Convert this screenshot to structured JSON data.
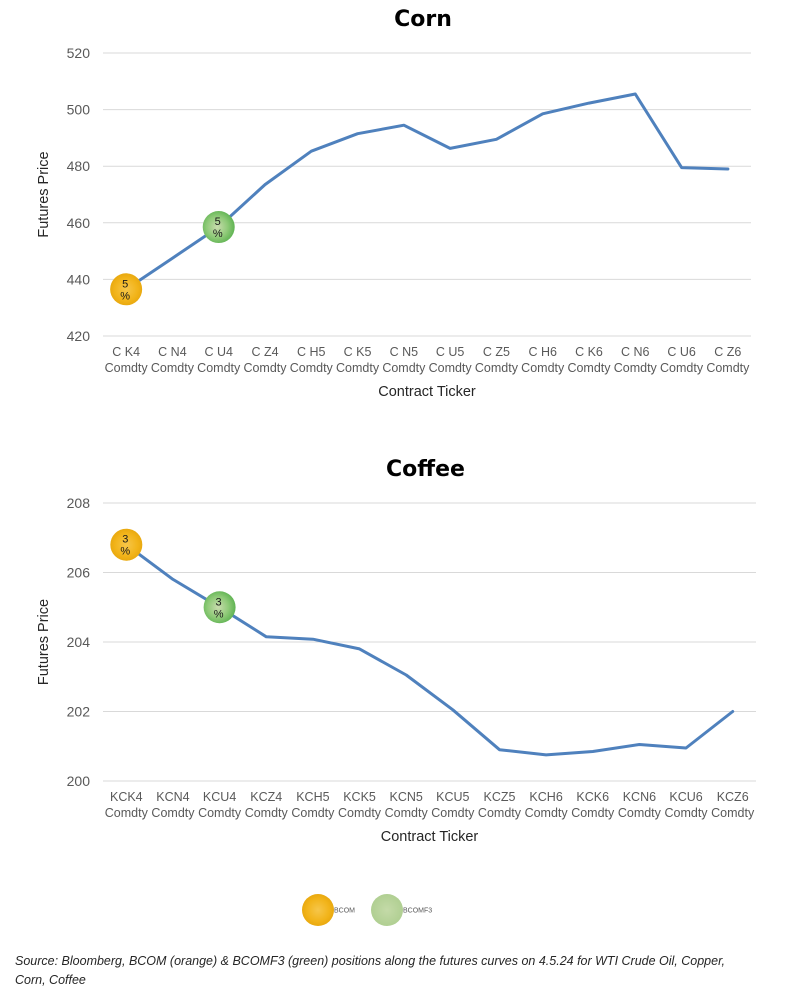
{
  "chart_data": [
    {
      "type": "line",
      "title": "Corn",
      "xlabel": "Contract Ticker",
      "ylabel": "Futures Price",
      "ylim": [
        420,
        520
      ],
      "yticks": [
        420,
        440,
        460,
        480,
        500,
        520
      ],
      "grid": true,
      "categories": [
        [
          "C K4",
          "Comdty"
        ],
        [
          "C N4",
          "Comdty"
        ],
        [
          "C U4",
          "Comdty"
        ],
        [
          "C Z4",
          "Comdty"
        ],
        [
          "C H5",
          "Comdty"
        ],
        [
          "C K5",
          "Comdty"
        ],
        [
          "C N5",
          "Comdty"
        ],
        [
          "C U5",
          "Comdty"
        ],
        [
          "C Z5",
          "Comdty"
        ],
        [
          "C H6",
          "Comdty"
        ],
        [
          "C K6",
          "Comdty"
        ],
        [
          "C N6",
          "Comdty"
        ],
        [
          "C U6",
          "Comdty"
        ],
        [
          "C Z6",
          "Comdty"
        ]
      ],
      "series": [
        {
          "values": [
            436.5,
            447.5,
            458.5,
            473.5,
            485.3,
            491.5,
            494.5,
            486.3,
            489.5,
            498.5,
            502.3,
            505.5,
            479.5,
            479.0
          ],
          "color": "#4f81bd"
        }
      ],
      "markers": [
        {
          "index": 0,
          "value": 436.5,
          "label": [
            "5",
            "%"
          ],
          "color": "#f4b400",
          "legend": "BCOM"
        },
        {
          "index": 2,
          "value": 458.5,
          "label": [
            "5",
            "%"
          ],
          "color": "#7fbf6a",
          "legend": "BCOMF3"
        }
      ]
    },
    {
      "type": "line",
      "title": "Coffee",
      "xlabel": "Contract Ticker",
      "ylabel": "Futures Price",
      "ylim": [
        200,
        208
      ],
      "yticks": [
        200,
        202,
        204,
        206,
        208
      ],
      "grid": true,
      "categories": [
        [
          "KCK4",
          "Comdty"
        ],
        [
          "KCN4",
          "Comdty"
        ],
        [
          "KCU4",
          "Comdty"
        ],
        [
          "KCZ4",
          "Comdty"
        ],
        [
          "KCH5",
          "Comdty"
        ],
        [
          "KCK5",
          "Comdty"
        ],
        [
          "KCN5",
          "Comdty"
        ],
        [
          "KCU5",
          "Comdty"
        ],
        [
          "KCZ5",
          "Comdty"
        ],
        [
          "KCH6",
          "Comdty"
        ],
        [
          "KCK6",
          "Comdty"
        ],
        [
          "KCN6",
          "Comdty"
        ],
        [
          "KCU6",
          "Comdty"
        ],
        [
          "KCZ6",
          "Comdty"
        ]
      ],
      "series": [
        {
          "values": [
            206.8,
            205.8,
            205.0,
            204.15,
            204.08,
            203.8,
            203.05,
            202.05,
            200.9,
            200.75,
            200.85,
            201.05,
            200.95,
            202.0
          ],
          "color": "#4f81bd"
        }
      ],
      "markers": [
        {
          "index": 0,
          "value": 206.8,
          "label": [
            "3",
            "%"
          ],
          "color": "#f4b400",
          "legend": "BCOM"
        },
        {
          "index": 2,
          "value": 205.0,
          "label": [
            "3",
            "%"
          ],
          "color": "#7fbf6a",
          "legend": "BCOMF3"
        }
      ]
    }
  ],
  "legend": {
    "items": [
      {
        "label": "BCOM",
        "color": "#f4b400"
      },
      {
        "label": "BCOMF3",
        "color": "#b5d39a"
      }
    ]
  },
  "source_note": "Source: Bloomberg, BCOM (orange) & BCOMF3 (green) positions along the futures curves on 4.5.24 for WTI Crude Oil, Copper, Corn, Coffee"
}
